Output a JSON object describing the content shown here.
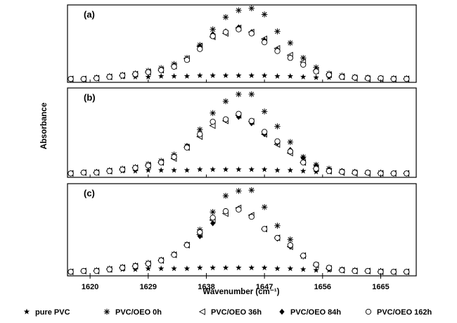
{
  "chart_data": {
    "type": "scatter",
    "ylabel": "Absorbance",
    "xlabel": "Wavenumber (cm⁻¹)",
    "xlim": [
      1616.5,
      1670.5
    ],
    "x_ticks": [
      1620,
      1629,
      1638,
      1647,
      1656,
      1665
    ],
    "x_tick_labels": [
      "1620",
      "1629",
      "1638",
      "1647",
      "1656",
      "1665"
    ],
    "y_scale": "relative (no tick labels)",
    "legend_position": "bottom",
    "series_styles": [
      {
        "name": "pure PVC",
        "marker": "filled-star"
      },
      {
        "name": "PVC/OEO 0h",
        "marker": "asterisk"
      },
      {
        "name": "PVC/OEO  36h",
        "marker": "open-left-triangle"
      },
      {
        "name": "PVC/OEO 84h",
        "marker": "filled-diamond"
      },
      {
        "name": "PVC/OEO 162h",
        "marker": "open-circle"
      }
    ],
    "panels": [
      {
        "label": "(a)",
        "ylim": [
          -0.02,
          1.12
        ],
        "series": [
          {
            "name": "pure PVC",
            "x": [
              1617,
              1619,
              1621,
              1623,
              1625,
              1627,
              1629,
              1631,
              1633,
              1635,
              1637,
              1639,
              1641,
              1643,
              1645,
              1647,
              1649,
              1651,
              1653,
              1655,
              1657,
              1659,
              1661,
              1663,
              1665,
              1667,
              1669
            ],
            "y": [
              0.03,
              0.03,
              0.04,
              0.05,
              0.06,
              0.06,
              0.06,
              0.07,
              0.07,
              0.07,
              0.08,
              0.08,
              0.08,
              0.08,
              0.08,
              0.08,
              0.07,
              0.07,
              0.06,
              0.05,
              0.05,
              0.05,
              0.05,
              0.04,
              0.04,
              0.03,
              0.03
            ]
          },
          {
            "name": "PVC/OEO 0h",
            "x": [
              1617,
              1619,
              1621,
              1623,
              1625,
              1627,
              1629,
              1631,
              1633,
              1635,
              1637,
              1639,
              1641,
              1643,
              1645,
              1647,
              1649,
              1651,
              1653,
              1655,
              1657,
              1659,
              1661,
              1663,
              1665,
              1667,
              1669
            ],
            "y": [
              0.03,
              0.03,
              0.05,
              0.07,
              0.09,
              0.11,
              0.15,
              0.19,
              0.25,
              0.34,
              0.53,
              0.76,
              0.94,
              1.04,
              1.07,
              0.98,
              0.73,
              0.56,
              0.34,
              0.2,
              0.11,
              0.08,
              0.06,
              0.05,
              0.04,
              0.04,
              0.04
            ]
          },
          {
            "name": "PVC/OEO  36h",
            "x": [
              1617,
              1619,
              1621,
              1623,
              1625,
              1627,
              1629,
              1631,
              1633,
              1635,
              1637,
              1639,
              1641,
              1643,
              1645,
              1647,
              1649,
              1651,
              1653,
              1655,
              1657,
              1659,
              1661,
              1663,
              1665,
              1667,
              1669
            ],
            "y": [
              0.03,
              0.03,
              0.04,
              0.06,
              0.08,
              0.1,
              0.13,
              0.16,
              0.22,
              0.33,
              0.51,
              0.65,
              0.7,
              0.78,
              0.72,
              0.62,
              0.48,
              0.38,
              0.28,
              0.15,
              0.09,
              0.06,
              0.04,
              0.03,
              0.03,
              0.03,
              0.03
            ]
          },
          {
            "name": "PVC/OEO 84h",
            "x": [
              1617,
              1619,
              1621,
              1623,
              1625,
              1627,
              1629,
              1631,
              1633,
              1635,
              1637,
              1639,
              1641,
              1643,
              1645,
              1647,
              1649,
              1651,
              1653,
              1655,
              1657,
              1659,
              1661,
              1663,
              1665,
              1667,
              1669
            ],
            "y": [
              0.03,
              0.03,
              0.04,
              0.06,
              0.08,
              0.1,
              0.13,
              0.16,
              0.21,
              0.31,
              0.51,
              0.69,
              0.73,
              0.79,
              0.72,
              0.6,
              0.46,
              0.35,
              0.24,
              0.14,
              0.09,
              0.06,
              0.04,
              0.04,
              0.03,
              0.03,
              0.03
            ]
          },
          {
            "name": "PVC/OEO 162h",
            "x": [
              1617,
              1619,
              1621,
              1623,
              1625,
              1627,
              1629,
              1631,
              1633,
              1635,
              1637,
              1639,
              1641,
              1643,
              1645,
              1647,
              1649,
              1651,
              1653,
              1655,
              1657,
              1659,
              1661,
              1663,
              1665,
              1667,
              1669
            ],
            "y": [
              0.03,
              0.03,
              0.04,
              0.06,
              0.08,
              0.1,
              0.13,
              0.16,
              0.21,
              0.31,
              0.47,
              0.66,
              0.72,
              0.76,
              0.7,
              0.57,
              0.44,
              0.34,
              0.24,
              0.14,
              0.09,
              0.06,
              0.05,
              0.04,
              0.04,
              0.03,
              0.03
            ]
          }
        ]
      },
      {
        "label": "(b)",
        "ylim": [
          -0.02,
          1.12
        ],
        "series": [
          {
            "name": "pure PVC",
            "x": [
              1617,
              1619,
              1621,
              1623,
              1625,
              1627,
              1629,
              1631,
              1633,
              1635,
              1637,
              1639,
              1641,
              1643,
              1645,
              1647,
              1649,
              1651,
              1653,
              1655,
              1657,
              1659,
              1661,
              1663,
              1665,
              1667,
              1669
            ],
            "y": [
              0.03,
              0.04,
              0.04,
              0.05,
              0.06,
              0.06,
              0.07,
              0.07,
              0.07,
              0.07,
              0.08,
              0.08,
              0.08,
              0.08,
              0.08,
              0.08,
              0.07,
              0.07,
              0.06,
              0.05,
              0.05,
              0.05,
              0.05,
              0.04,
              0.04,
              0.03,
              0.03
            ]
          },
          {
            "name": "PVC/OEO 0h",
            "x": [
              1617,
              1619,
              1621,
              1623,
              1625,
              1627,
              1629,
              1631,
              1633,
              1635,
              1637,
              1639,
              1641,
              1643,
              1645,
              1647,
              1649,
              1651,
              1653,
              1655,
              1657,
              1659,
              1661,
              1663,
              1665,
              1667,
              1669
            ],
            "y": [
              0.03,
              0.04,
              0.05,
              0.07,
              0.09,
              0.11,
              0.15,
              0.19,
              0.27,
              0.38,
              0.59,
              0.8,
              0.95,
              1.04,
              1.04,
              0.82,
              0.63,
              0.43,
              0.24,
              0.14,
              0.09,
              0.06,
              0.05,
              0.04,
              0.04,
              0.03,
              0.03
            ]
          },
          {
            "name": "PVC/OEO  36h",
            "x": [
              1617,
              1619,
              1621,
              1623,
              1625,
              1627,
              1629,
              1631,
              1633,
              1635,
              1637,
              1639,
              1641,
              1643,
              1645,
              1647,
              1649,
              1651,
              1653,
              1655,
              1657,
              1659,
              1661,
              1663,
              1665,
              1667,
              1669
            ],
            "y": [
              0.03,
              0.04,
              0.04,
              0.06,
              0.08,
              0.1,
              0.13,
              0.17,
              0.22,
              0.36,
              0.5,
              0.64,
              0.7,
              0.77,
              0.69,
              0.53,
              0.4,
              0.29,
              0.17,
              0.09,
              0.06,
              0.04,
              0.03,
              0.03,
              0.03,
              0.03,
              0.03
            ]
          },
          {
            "name": "PVC/OEO 84h",
            "x": [
              1617,
              1619,
              1621,
              1623,
              1625,
              1627,
              1629,
              1631,
              1633,
              1635,
              1637,
              1639,
              1641,
              1643,
              1645,
              1647,
              1649,
              1651,
              1653,
              1655,
              1657,
              1659,
              1661,
              1663,
              1665,
              1667,
              1669
            ],
            "y": [
              0.03,
              0.04,
              0.04,
              0.06,
              0.08,
              0.1,
              0.13,
              0.17,
              0.24,
              0.38,
              0.54,
              0.69,
              0.71,
              0.75,
              0.67,
              0.53,
              0.42,
              0.33,
              0.23,
              0.13,
              0.08,
              0.06,
              0.04,
              0.04,
              0.03,
              0.03,
              0.03
            ]
          },
          {
            "name": "PVC/OEO 162h",
            "x": [
              1617,
              1619,
              1621,
              1623,
              1625,
              1627,
              1629,
              1631,
              1633,
              1635,
              1637,
              1639,
              1641,
              1643,
              1645,
              1647,
              1649,
              1651,
              1653,
              1655,
              1657,
              1659,
              1661,
              1663,
              1665,
              1667,
              1669
            ],
            "y": [
              0.03,
              0.04,
              0.04,
              0.06,
              0.08,
              0.1,
              0.13,
              0.17,
              0.24,
              0.36,
              0.53,
              0.69,
              0.72,
              0.79,
              0.7,
              0.56,
              0.44,
              0.31,
              0.17,
              0.09,
              0.06,
              0.05,
              0.04,
              0.04,
              0.03,
              0.03,
              0.03
            ]
          }
        ]
      },
      {
        "label": "(c)",
        "ylim": [
          -0.02,
          1.12
        ],
        "series": [
          {
            "name": "pure PVC",
            "x": [
              1617,
              1619,
              1621,
              1623,
              1625,
              1627,
              1629,
              1631,
              1633,
              1635,
              1637,
              1639,
              1641,
              1643,
              1645,
              1647,
              1649,
              1651,
              1653,
              1655,
              1657,
              1659,
              1661,
              1663,
              1665,
              1667,
              1669
            ],
            "y": [
              0.03,
              0.04,
              0.04,
              0.05,
              0.06,
              0.06,
              0.07,
              0.07,
              0.07,
              0.07,
              0.08,
              0.08,
              0.08,
              0.08,
              0.08,
              0.08,
              0.07,
              0.07,
              0.06,
              0.05,
              0.05,
              0.05,
              0.05,
              0.04,
              0.04,
              0.03,
              0.03
            ]
          },
          {
            "name": "PVC/OEO 0h",
            "x": [
              1617,
              1619,
              1621,
              1623,
              1625,
              1627,
              1629,
              1631,
              1633,
              1635,
              1637,
              1639,
              1641,
              1643,
              1645,
              1647,
              1649,
              1651,
              1653,
              1655,
              1657,
              1659,
              1661,
              1663,
              1665,
              1667,
              1669
            ],
            "y": [
              0.03,
              0.04,
              0.05,
              0.07,
              0.09,
              0.11,
              0.14,
              0.18,
              0.25,
              0.37,
              0.55,
              0.77,
              0.97,
              1.03,
              1.04,
              0.83,
              0.6,
              0.43,
              0.22,
              0.12,
              0.08,
              0.06,
              0.05,
              0.04,
              0.04,
              0.03,
              0.03
            ]
          },
          {
            "name": "PVC/OEO  36h",
            "x": [
              1617,
              1619,
              1621,
              1623,
              1625,
              1627,
              1629,
              1631,
              1633,
              1635,
              1637,
              1639,
              1641,
              1643,
              1645,
              1647,
              1649,
              1651,
              1653,
              1655,
              1657,
              1659,
              1661,
              1663,
              1665,
              1667,
              1669
            ],
            "y": [
              0.03,
              0.04,
              0.04,
              0.06,
              0.08,
              0.1,
              0.13,
              0.17,
              0.24,
              0.36,
              0.49,
              0.67,
              0.75,
              0.82,
              0.73,
              0.56,
              0.45,
              0.34,
              0.23,
              0.11,
              0.07,
              0.05,
              0.04,
              0.04,
              0.03,
              0.03,
              0.03
            ]
          },
          {
            "name": "PVC/OEO 84h",
            "x": [
              1617,
              1619,
              1621,
              1623,
              1625,
              1627,
              1629,
              1631,
              1633,
              1635,
              1637,
              1639,
              1641,
              1643,
              1645,
              1647,
              1649,
              1651,
              1653,
              1655,
              1657,
              1659,
              1661,
              1663,
              1665,
              1667,
              1669
            ],
            "y": [
              0.03,
              0.04,
              0.04,
              0.06,
              0.08,
              0.1,
              0.13,
              0.17,
              0.24,
              0.36,
              0.47,
              0.63,
              0.78,
              0.81,
              0.72,
              0.56,
              0.44,
              0.34,
              0.23,
              0.12,
              0.08,
              0.05,
              0.04,
              0.04,
              0.03,
              0.03,
              0.03
            ]
          },
          {
            "name": "PVC/OEO 162h",
            "x": [
              1617,
              1619,
              1621,
              1623,
              1625,
              1627,
              1629,
              1631,
              1633,
              1635,
              1637,
              1639,
              1641,
              1643,
              1645,
              1647,
              1649,
              1651,
              1653,
              1655,
              1657,
              1659,
              1661,
              1663,
              1665,
              1667,
              1669
            ],
            "y": [
              0.03,
              0.04,
              0.04,
              0.06,
              0.08,
              0.1,
              0.13,
              0.17,
              0.24,
              0.36,
              0.52,
              0.7,
              0.78,
              0.8,
              0.71,
              0.56,
              0.45,
              0.36,
              0.23,
              0.12,
              0.08,
              0.05,
              0.04,
              0.04,
              0.03,
              0.03,
              0.03
            ]
          }
        ]
      }
    ]
  }
}
